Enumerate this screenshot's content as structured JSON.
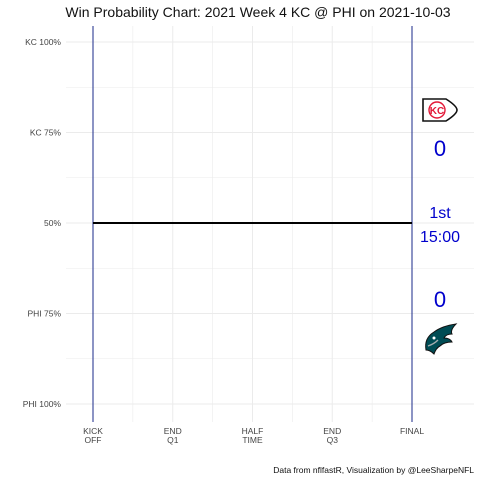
{
  "chart_data": {
    "type": "line",
    "title": "Win Probability Chart: 2021 Week 4 KC @ PHI on 2021-10-03",
    "caption": "Data from nflfastR, Visualization by @LeeSharpeNFL",
    "x_ticks": [
      "KICK\nOFF",
      "END\nQ1",
      "HALF\nTIME",
      "END\nQ3",
      "FINAL"
    ],
    "y_ticks": [
      "KC 100%",
      "KC 75%",
      "50%",
      "PHI 75%",
      "PHI 100%"
    ],
    "y_tick_values": [
      1.0,
      0.75,
      0.5,
      0.25,
      0.0
    ],
    "x_tick_values": [
      0,
      900,
      1800,
      2700,
      3600
    ],
    "xlim": [
      0,
      3600
    ],
    "ylim": [
      0,
      1
    ],
    "grid": true,
    "series": [
      {
        "x": [
          0,
          3600
        ],
        "y": [
          0.5,
          0.5
        ],
        "color": "#000000"
      }
    ],
    "scoreboard": {
      "away_team": "KC",
      "home_team": "PHI",
      "away_score": "0",
      "home_score": "0",
      "quarter": "1st",
      "clock": "15:00",
      "color": "#0000cc"
    },
    "colors": {
      "boundary_lines": "#1a2a8a",
      "grid": "#ebebeb",
      "kc_red": "#e31837",
      "phi_green": "#004c54"
    }
  }
}
